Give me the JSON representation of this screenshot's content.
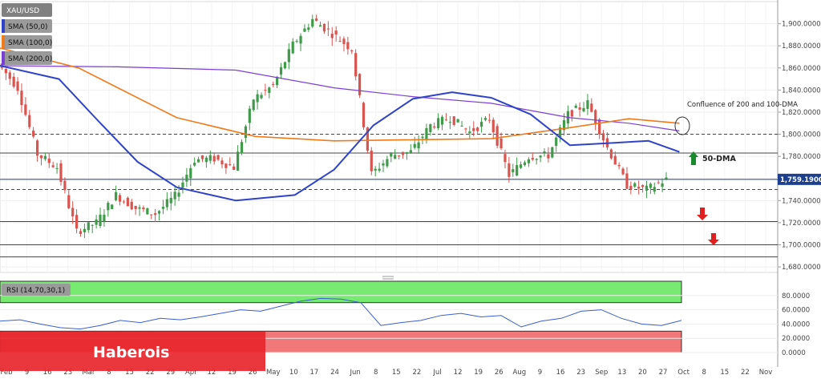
{
  "chart_data": {
    "type": "candlestick",
    "symbol": "XAU/USD",
    "indicators": [
      {
        "label": "SMA (50,0)",
        "color": "#2f43c9"
      },
      {
        "label": "SMA (100,0)",
        "color": "#f07a1a"
      },
      {
        "label": "SMA (200,0)",
        "color": "#7b3fd6"
      }
    ],
    "price_axis": {
      "ylim": [
        1675,
        1920
      ],
      "ticks": [
        "1,680.0000",
        "1,700.0000",
        "1,720.0000",
        "1,740.0000",
        "1,760.0000",
        "1,780.0000",
        "1,800.0000",
        "1,820.0000",
        "1,840.0000",
        "1,860.0000",
        "1,880.0000",
        "1,900.0000"
      ],
      "tick_values": [
        1680,
        1700,
        1720,
        1740,
        1760,
        1780,
        1800,
        1820,
        1840,
        1860,
        1880,
        1900
      ]
    },
    "current_price": {
      "label": "1,759.1900",
      "value": 1759.19
    },
    "time_axis": {
      "labels": [
        "Feb",
        "9",
        "16",
        "23",
        "Mar",
        "8",
        "15",
        "22",
        "29",
        "Apr",
        "12",
        "19",
        "26",
        "May",
        "10",
        "17",
        "24",
        "Jun",
        "8",
        "15",
        "22",
        "Jul",
        "12",
        "19",
        "26",
        "Aug",
        "9",
        "16",
        "23",
        "Sep",
        "13",
        "20",
        "27",
        "Oct",
        "8",
        "15",
        "22",
        "Nov"
      ],
      "range": [
        "2021-02-01",
        "2021-11-05"
      ]
    },
    "closes": [
      {
        "date": "2021-02-01",
        "close": 1864
      },
      {
        "date": "2021-02-08",
        "close": 1842
      },
      {
        "date": "2021-02-15",
        "close": 1782
      },
      {
        "date": "2021-02-22",
        "close": 1770
      },
      {
        "date": "2021-03-01",
        "close": 1712
      },
      {
        "date": "2021-03-08",
        "close": 1720
      },
      {
        "date": "2021-03-15",
        "close": 1745
      },
      {
        "date": "2021-03-22",
        "close": 1733
      },
      {
        "date": "2021-03-29",
        "close": 1728
      },
      {
        "date": "2021-04-05",
        "close": 1744
      },
      {
        "date": "2021-04-12",
        "close": 1777
      },
      {
        "date": "2021-04-19",
        "close": 1778
      },
      {
        "date": "2021-04-26",
        "close": 1770
      },
      {
        "date": "2021-05-03",
        "close": 1832
      },
      {
        "date": "2021-05-10",
        "close": 1844
      },
      {
        "date": "2021-05-17",
        "close": 1881
      },
      {
        "date": "2021-05-24",
        "close": 1904
      },
      {
        "date": "2021-05-31",
        "close": 1891
      },
      {
        "date": "2021-06-07",
        "close": 1877
      },
      {
        "date": "2021-06-14",
        "close": 1764
      },
      {
        "date": "2021-06-21",
        "close": 1781
      },
      {
        "date": "2021-06-28",
        "close": 1784
      },
      {
        "date": "2021-07-05",
        "close": 1808
      },
      {
        "date": "2021-07-12",
        "close": 1815
      },
      {
        "date": "2021-07-19",
        "close": 1802
      },
      {
        "date": "2021-07-26",
        "close": 1814
      },
      {
        "date": "2021-08-02",
        "close": 1763
      },
      {
        "date": "2021-08-09",
        "close": 1780
      },
      {
        "date": "2021-08-16",
        "close": 1781
      },
      {
        "date": "2021-08-23",
        "close": 1818
      },
      {
        "date": "2021-08-30",
        "close": 1828
      },
      {
        "date": "2021-09-06",
        "close": 1788
      },
      {
        "date": "2021-09-13",
        "close": 1754
      },
      {
        "date": "2021-09-20",
        "close": 1750
      },
      {
        "date": "2021-09-27",
        "close": 1759
      }
    ],
    "sma50": [
      {
        "date": "2021-02-01",
        "value": 1862
      },
      {
        "date": "2021-02-22",
        "value": 1850
      },
      {
        "date": "2021-03-08",
        "value": 1812
      },
      {
        "date": "2021-03-22",
        "value": 1775
      },
      {
        "date": "2021-04-05",
        "value": 1752
      },
      {
        "date": "2021-04-26",
        "value": 1740
      },
      {
        "date": "2021-05-17",
        "value": 1745
      },
      {
        "date": "2021-05-31",
        "value": 1768
      },
      {
        "date": "2021-06-14",
        "value": 1808
      },
      {
        "date": "2021-06-28",
        "value": 1832
      },
      {
        "date": "2021-07-12",
        "value": 1838
      },
      {
        "date": "2021-07-26",
        "value": 1833
      },
      {
        "date": "2021-08-09",
        "value": 1818
      },
      {
        "date": "2021-08-23",
        "value": 1790
      },
      {
        "date": "2021-09-06",
        "value": 1792
      },
      {
        "date": "2021-09-20",
        "value": 1794
      },
      {
        "date": "2021-10-01",
        "value": 1784
      }
    ],
    "sma100": [
      {
        "date": "2021-02-01",
        "value": 1878
      },
      {
        "date": "2021-03-01",
        "value": 1860
      },
      {
        "date": "2021-04-05",
        "value": 1815
      },
      {
        "date": "2021-05-03",
        "value": 1798
      },
      {
        "date": "2021-05-31",
        "value": 1794
      },
      {
        "date": "2021-06-28",
        "value": 1795
      },
      {
        "date": "2021-07-26",
        "value": 1796
      },
      {
        "date": "2021-08-23",
        "value": 1806
      },
      {
        "date": "2021-09-13",
        "value": 1814
      },
      {
        "date": "2021-10-01",
        "value": 1810
      }
    ],
    "sma200": [
      {
        "date": "2021-02-01",
        "value": 1862
      },
      {
        "date": "2021-03-15",
        "value": 1861
      },
      {
        "date": "2021-04-26",
        "value": 1858
      },
      {
        "date": "2021-05-31",
        "value": 1842
      },
      {
        "date": "2021-06-28",
        "value": 1834
      },
      {
        "date": "2021-07-26",
        "value": 1828
      },
      {
        "date": "2021-08-23",
        "value": 1815
      },
      {
        "date": "2021-09-13",
        "value": 1810
      },
      {
        "date": "2021-10-01",
        "value": 1803
      }
    ],
    "levels": [
      {
        "value": 1800,
        "style": "dashed"
      },
      {
        "value": 1783,
        "style": "solid"
      },
      {
        "value": 1750,
        "style": "dashed"
      },
      {
        "value": 1721,
        "style": "solid"
      },
      {
        "value": 1700,
        "style": "solid"
      },
      {
        "value": 1689,
        "style": "solid"
      }
    ],
    "annotations": [
      {
        "text": "Confluence of 200 and 100-DMA"
      },
      {
        "text": "50-DMA"
      }
    ],
    "rsi": {
      "label": "RSI (14,70,30,1)",
      "ylim": [
        0,
        100
      ],
      "overbought": 70,
      "oversold": 30,
      "ticks": [
        "0.0000",
        "20.0000",
        "40.0000",
        "60.0000",
        "80.0000"
      ],
      "tick_values": [
        0,
        20,
        40,
        60,
        80
      ],
      "values": [
        44,
        46,
        40,
        35,
        33,
        38,
        45,
        42,
        48,
        46,
        50,
        55,
        60,
        58,
        65,
        72,
        76,
        75,
        70,
        38,
        42,
        45,
        52,
        55,
        50,
        52,
        36,
        44,
        48,
        58,
        60,
        48,
        40,
        38,
        45
      ]
    }
  },
  "watermark": {
    "text": "Haberois"
  }
}
